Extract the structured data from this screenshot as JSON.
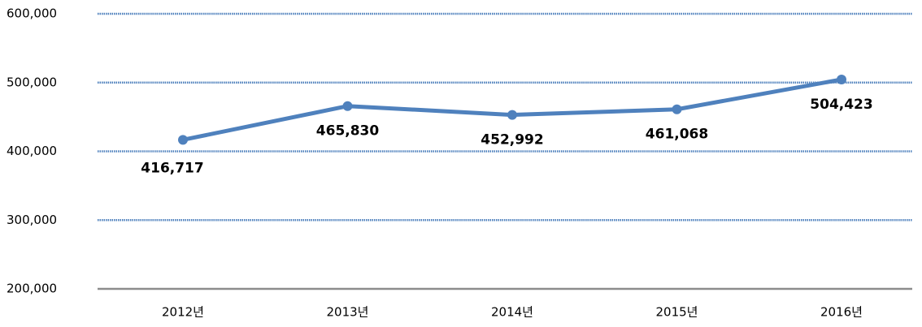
{
  "chart_data": {
    "type": "line",
    "categories": [
      "2012년",
      "2013년",
      "2014년",
      "2015년",
      "2016년"
    ],
    "values": [
      416717,
      465830,
      452992,
      461068,
      504423
    ],
    "value_labels": [
      "416,717",
      "465,830",
      "452,992",
      "461,068",
      "504,423"
    ],
    "color": "#4f81bd",
    "ylim": [
      200000,
      600000
    ],
    "yticks": [
      {
        "value": 200000,
        "label": "200,000"
      },
      {
        "value": 300000,
        "label": "300,000"
      },
      {
        "value": 400000,
        "label": "400,000"
      },
      {
        "value": 500000,
        "label": "500,000"
      },
      {
        "value": 600000,
        "label": "600,000"
      }
    ],
    "grid": true
  }
}
